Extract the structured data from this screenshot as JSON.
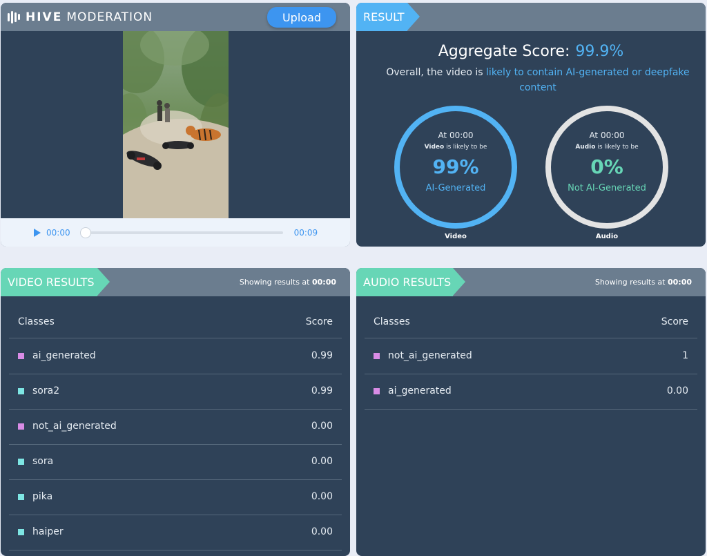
{
  "app": {
    "logo_hive": "HIVE",
    "logo_moderation": "MODERATION",
    "upload_label": "Upload"
  },
  "player": {
    "current_time": "00:00",
    "duration": "00:09",
    "progress": 0
  },
  "result": {
    "tag": "RESULT",
    "aggregate_label": "Aggregate Score:",
    "aggregate_value": "99.9%",
    "overall_prefix": "Overall, the video is",
    "overall_highlight": "likely to contain AI-generated or deepfake content",
    "video": {
      "at": "At 00:00",
      "kind": "Video",
      "likely": "is likely to be",
      "percent": "99%",
      "label": "AI-Generated",
      "caption": "Video"
    },
    "audio": {
      "at": "At 00:00",
      "kind": "Audio",
      "likely": "is likely to be",
      "percent": "0%",
      "label": "Not AI-Generated",
      "caption": "Audio"
    }
  },
  "video_results": {
    "tag": "VIDEO RESULTS",
    "showing_prefix": "Showing results at",
    "showing_time": "00:00",
    "col_classes": "Classes",
    "col_score": "Score",
    "rows": [
      {
        "name": "ai_generated",
        "score": "0.99",
        "color": "#d98ce6"
      },
      {
        "name": "sora2",
        "score": "0.99",
        "color": "#7ee6e4"
      },
      {
        "name": "not_ai_generated",
        "score": "0.00",
        "color": "#d98ce6"
      },
      {
        "name": "sora",
        "score": "0.00",
        "color": "#7ee6e4"
      },
      {
        "name": "pika",
        "score": "0.00",
        "color": "#7ee6e4"
      },
      {
        "name": "haiper",
        "score": "0.00",
        "color": "#7ee6e4"
      }
    ]
  },
  "audio_results": {
    "tag": "AUDIO RESULTS",
    "showing_prefix": "Showing results at",
    "showing_time": "00:00",
    "col_classes": "Classes",
    "col_score": "Score",
    "rows": [
      {
        "name": "not_ai_generated",
        "score": "1",
        "color": "#d98ce6"
      },
      {
        "name": "ai_generated",
        "score": "0.00",
        "color": "#d98ce6"
      }
    ]
  },
  "colors": {
    "accent_blue": "#52b3f4",
    "accent_green": "#67d6b6",
    "panel_bg": "#2f4258",
    "header_bg": "#6b7d8f"
  }
}
